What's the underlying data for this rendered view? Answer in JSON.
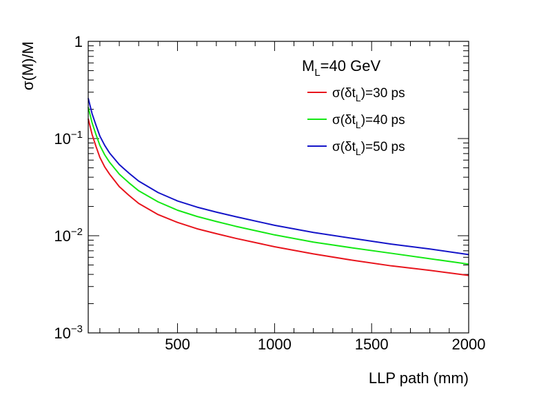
{
  "chart_data": {
    "type": "line",
    "title": "",
    "xlabel": "LLP path (mm)",
    "ylabel": "σ(M)/M",
    "xlim": [
      40,
      2000
    ],
    "ylim": [
      0.001,
      1
    ],
    "yscale": "log",
    "grid": false,
    "legend_placement": "top-right",
    "annotation": {
      "main": "M",
      "sub": "L",
      "rest": "=40 GeV"
    },
    "x_tick_labels": [
      {
        "value": 500,
        "label": "500"
      },
      {
        "value": 1000,
        "label": "1000"
      },
      {
        "value": 1500,
        "label": "1500"
      },
      {
        "value": 2000,
        "label": "2000"
      }
    ],
    "y_tick_labels": [
      {
        "value": 1,
        "base": "1",
        "exp": ""
      },
      {
        "value": 0.1,
        "base": "10",
        "exp": "−1"
      },
      {
        "value": 0.01,
        "base": "10",
        "exp": "−2"
      },
      {
        "value": 0.001,
        "base": "10",
        "exp": "−3"
      }
    ],
    "series": [
      {
        "name": "σ(δt_L)=30 ps",
        "legend": {
          "pre": "σ(δt",
          "sub": "L",
          "post": ")=30 ps"
        },
        "color": "#e8141c",
        "x": [
          40,
          60,
          80,
          100,
          125,
          150,
          200,
          250,
          300,
          400,
          500,
          600,
          700,
          800,
          1000,
          1200,
          1400,
          1600,
          1800,
          2000
        ],
        "y": [
          0.16,
          0.11,
          0.083,
          0.064,
          0.051,
          0.043,
          0.032,
          0.026,
          0.0215,
          0.0165,
          0.0137,
          0.0118,
          0.0105,
          0.0094,
          0.0077,
          0.0065,
          0.0056,
          0.0049,
          0.0044,
          0.0039
        ]
      },
      {
        "name": "σ(δt_L)=40 ps",
        "legend": {
          "pre": "σ(δt",
          "sub": "L",
          "post": ")=40 ps"
        },
        "color": "#14e814",
        "x": [
          40,
          60,
          80,
          100,
          125,
          150,
          200,
          250,
          300,
          400,
          500,
          600,
          700,
          800,
          1000,
          1200,
          1400,
          1600,
          1800,
          2000
        ],
        "y": [
          0.21,
          0.145,
          0.11,
          0.085,
          0.068,
          0.057,
          0.043,
          0.035,
          0.029,
          0.0223,
          0.0183,
          0.0158,
          0.014,
          0.0125,
          0.0102,
          0.0086,
          0.0075,
          0.0066,
          0.0058,
          0.0051
        ]
      },
      {
        "name": "σ(δt_L)=50 ps",
        "legend": {
          "pre": "σ(δt",
          "sub": "L",
          "post": ")=50 ps"
        },
        "color": "#1414c8",
        "x": [
          40,
          60,
          80,
          100,
          125,
          150,
          200,
          250,
          300,
          400,
          500,
          600,
          700,
          800,
          1000,
          1200,
          1400,
          1600,
          1800,
          2000
        ],
        "y": [
          0.26,
          0.18,
          0.137,
          0.106,
          0.085,
          0.071,
          0.054,
          0.044,
          0.0365,
          0.0278,
          0.0228,
          0.0197,
          0.0175,
          0.0157,
          0.0128,
          0.0108,
          0.0094,
          0.0082,
          0.0073,
          0.0064
        ]
      }
    ]
  }
}
